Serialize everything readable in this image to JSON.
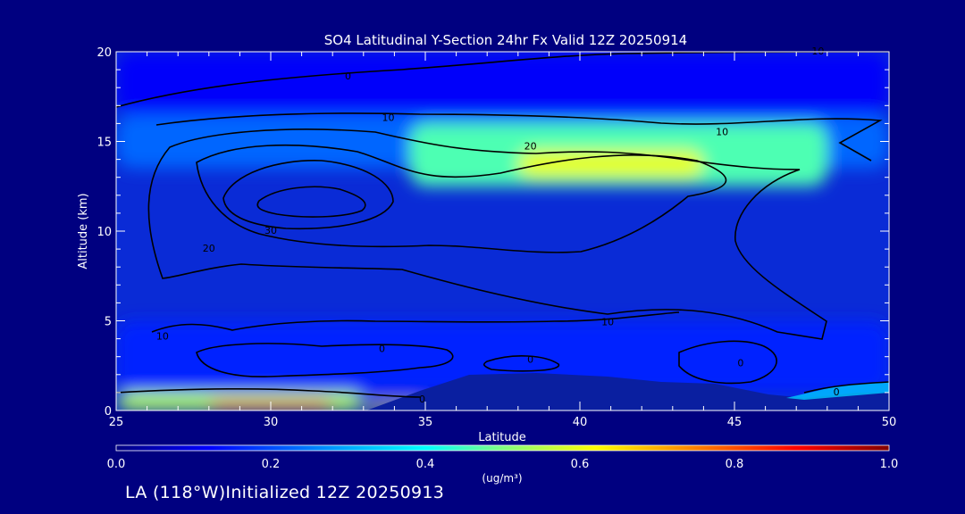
{
  "chart_data": {
    "type": "heatmap",
    "title": "SO4 Latitudinal Y-Section 24hr  Fx Valid 12Z 20250914",
    "xlabel": "Latitude",
    "ylabel": "Altitude (km)",
    "xlim": [
      25,
      50
    ],
    "ylim": [
      0,
      20
    ],
    "x_ticks": [
      "25",
      "30",
      "35",
      "40",
      "45",
      "50"
    ],
    "y_ticks": [
      "0",
      "5",
      "10",
      "15",
      "20"
    ],
    "colorbar": {
      "min": 0.0,
      "max": 1.0,
      "ticks": [
        "0.0",
        "0.2",
        "0.4",
        "0.6",
        "0.8",
        "1.0"
      ],
      "units_label": "(ug/m³)",
      "colors": [
        "#000080",
        "#0000ff",
        "#00aaff",
        "#00ffff",
        "#80ff80",
        "#ffff00",
        "#ff8000",
        "#ff0000",
        "#800000"
      ]
    },
    "concentration_regions": [
      {
        "lat": [
          25,
          50
        ],
        "alt": [
          16.5,
          20
        ],
        "value": 0.12
      },
      {
        "lat": [
          25,
          50
        ],
        "alt": [
          13.5,
          16.5
        ],
        "value": 0.2
      },
      {
        "lat": [
          34.5,
          48
        ],
        "alt": [
          12.5,
          16
        ],
        "value": 0.45
      },
      {
        "lat": [
          38,
          44
        ],
        "alt": [
          13,
          14.5
        ],
        "value": 0.6
      },
      {
        "lat": [
          25,
          50
        ],
        "alt": [
          1,
          5
        ],
        "value": 0.15
      },
      {
        "lat": [
          25,
          33
        ],
        "alt": [
          0,
          1
        ],
        "value": 0.55
      },
      {
        "lat": [
          28,
          32
        ],
        "alt": [
          0,
          0.5
        ],
        "value": 0.75
      },
      {
        "lat": [
          33,
          35
        ],
        "alt": [
          0,
          0.4
        ],
        "value": 0.65
      }
    ],
    "contour_labels": [
      {
        "text": "0",
        "lat": 32.5,
        "alt": 18.6
      },
      {
        "text": "10",
        "lat": 33.8,
        "alt": 16.3
      },
      {
        "text": "10",
        "lat": 44.6,
        "alt": 15.5
      },
      {
        "text": "20",
        "lat": 38.4,
        "alt": 14.7
      },
      {
        "text": "30",
        "lat": 30.0,
        "alt": 10.0
      },
      {
        "text": "20",
        "lat": 28.0,
        "alt": 9.0
      },
      {
        "text": "10",
        "lat": 40.9,
        "alt": 4.9
      },
      {
        "text": "10",
        "lat": 26.5,
        "alt": 4.1
      },
      {
        "text": "0",
        "lat": 33.6,
        "alt": 3.4
      },
      {
        "text": "0",
        "lat": 38.4,
        "alt": 2.8
      },
      {
        "text": "0",
        "lat": 45.2,
        "alt": 2.6
      },
      {
        "text": "0",
        "lat": 34.9,
        "alt": 0.6
      },
      {
        "text": "0",
        "lat": 48.3,
        "alt": 1.0
      },
      {
        "text": "10",
        "lat": 47.7,
        "alt": 20.0
      }
    ]
  },
  "footer": {
    "location_text": "LA (118°W)Initialized 12Z 20250913"
  }
}
